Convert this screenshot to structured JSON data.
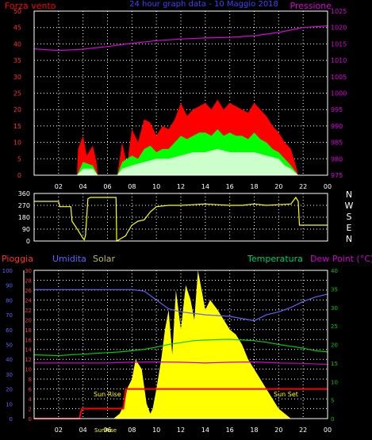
{
  "title": "24 hour graph data - 10 Maggio 2018",
  "x_ticks": [
    "02",
    "04",
    "06",
    "08",
    "10",
    "12",
    "14",
    "16",
    "18",
    "20",
    "22",
    "00"
  ],
  "colors": {
    "wind": "#ff0000",
    "gust": "#00ff00",
    "mean": "#ccffcc",
    "pressure": "#dd00dd",
    "direction": "#ffff00",
    "rain": "#ff0000",
    "humidity": "#6060ff",
    "solar": "#ffff00",
    "temperature": "#00cc00",
    "dewpoint": "#cc00cc",
    "grid": "#ffffff",
    "frame": "#ffffff"
  },
  "chart_data": [
    {
      "type": "line",
      "name": "wind-pressure",
      "left_label": "Forza vento",
      "right_label": "Pressione",
      "left_ticks": [
        0,
        5,
        10,
        15,
        20,
        25,
        30,
        35,
        40,
        45,
        50
      ],
      "right_ticks": [
        975,
        980,
        985,
        990,
        995,
        1000,
        1005,
        1010,
        1015,
        1020,
        1025
      ],
      "ylim_left": [
        0,
        50
      ],
      "ylim_right": [
        975,
        1025
      ],
      "series": [
        {
          "name": "Pressione",
          "axis": "right",
          "x": [
            0,
            2,
            4,
            6,
            8,
            10,
            12,
            14,
            16,
            18,
            20,
            22,
            24
          ],
          "values": [
            1013.5,
            1013,
            1013.4,
            1014.2,
            1015.2,
            1016,
            1016.5,
            1016.8,
            1017,
            1017.5,
            1018.5,
            1020,
            1020.5
          ]
        },
        {
          "name": "Raffica",
          "axis": "left",
          "x": [
            0,
            3.5,
            3.6,
            4.0,
            4.3,
            4.8,
            5.1,
            5.2,
            6.8,
            7.2,
            7.6,
            8.0,
            8.5,
            9.0,
            9.5,
            10.0,
            10.5,
            11.0,
            11.5,
            12.0,
            12.5,
            13.0,
            13.5,
            14.0,
            14.5,
            15.0,
            15.5,
            16.0,
            16.5,
            17.0,
            17.5,
            18.0,
            18.5,
            19.0,
            19.5,
            20.0,
            20.5,
            21.0,
            21.4,
            21.6,
            24
          ],
          "values": [
            0,
            0,
            8,
            12,
            6,
            9,
            4,
            0,
            0,
            10,
            3,
            14,
            10,
            17,
            16,
            12,
            15,
            14,
            17,
            22,
            18,
            20,
            21,
            22,
            20,
            23,
            20,
            22,
            21,
            20,
            19,
            22,
            20,
            18,
            15,
            13,
            10,
            8,
            3,
            0,
            0
          ]
        },
        {
          "name": "Vento",
          "axis": "left",
          "x": [
            0,
            3.5,
            4.0,
            4.8,
            5.2,
            6.8,
            7.2,
            8.0,
            8.5,
            9.0,
            9.5,
            10.0,
            10.5,
            11.0,
            11.5,
            12.0,
            12.5,
            13.0,
            13.5,
            14.0,
            14.5,
            15.0,
            15.5,
            16.0,
            16.5,
            17.0,
            17.5,
            18.0,
            18.5,
            19.0,
            19.5,
            20.0,
            20.5,
            21.0,
            21.6,
            24
          ],
          "values": [
            0,
            0,
            4,
            3,
            0,
            0,
            4,
            6,
            5,
            8,
            9,
            7,
            8,
            8,
            10,
            12,
            11,
            12,
            13,
            13,
            12,
            14,
            12,
            13,
            12,
            12,
            11,
            13,
            11,
            10,
            8,
            7,
            5,
            3,
            0,
            0
          ]
        },
        {
          "name": "Media",
          "axis": "left",
          "x": [
            0,
            3.5,
            4.0,
            4.8,
            5.2,
            6.8,
            7.2,
            8.0,
            9.0,
            10.0,
            11.0,
            12.0,
            13.0,
            14.0,
            15.0,
            16.0,
            17.0,
            18.0,
            19.0,
            20.0,
            20.5,
            21.0,
            21.6,
            24
          ],
          "values": [
            0,
            0,
            2,
            2,
            0,
            0,
            2,
            3,
            4,
            5,
            5,
            6,
            7,
            7,
            8,
            7,
            7,
            7,
            6,
            5,
            3,
            2,
            0,
            0
          ]
        }
      ]
    },
    {
      "type": "line",
      "name": "wind-direction",
      "left_ticks": [
        0,
        90,
        180,
        270,
        360
      ],
      "right_labels": [
        "N",
        "W",
        "S",
        "E",
        "N"
      ],
      "ylim": [
        0,
        360
      ],
      "series": [
        {
          "name": "Direzione",
          "x": [
            0,
            0.2,
            2.0,
            2.1,
            3.0,
            3.1,
            3.6,
            4.0,
            4.1,
            4.2,
            4.4,
            4.6,
            6.7,
            6.75,
            7.5,
            7.6,
            8.0,
            8.5,
            9.0,
            9.5,
            10.0,
            11.0,
            12.0,
            13.0,
            14.0,
            15.0,
            16.0,
            17.0,
            18.0,
            19.0,
            20.0,
            21.0,
            21.4,
            21.6,
            21.7,
            24
          ],
          "values": [
            300,
            300,
            300,
            260,
            260,
            150,
            80,
            20,
            10,
            40,
            320,
            330,
            330,
            0,
            40,
            60,
            120,
            150,
            160,
            220,
            260,
            270,
            270,
            275,
            280,
            275,
            270,
            270,
            280,
            270,
            275,
            280,
            330,
            300,
            120,
            120
          ]
        }
      ]
    },
    {
      "type": "line",
      "name": "rain-humidity-solar-temperature-dewpoint",
      "left_labels": [
        "Pioggia",
        "Umidita",
        "Solar"
      ],
      "right_labels": [
        "Temperatura",
        "Dew Point (°C)"
      ],
      "annotations": [
        "Sun Rise",
        "Sun Set",
        "SunRise"
      ],
      "humidity_ticks": [
        0,
        10,
        20,
        30,
        40,
        50,
        60,
        70,
        80,
        90,
        100
      ],
      "rain_ticks": [
        0,
        2,
        4,
        6,
        8,
        10,
        12,
        14,
        16,
        18,
        20,
        22,
        24,
        26,
        28,
        30
      ],
      "temp_ticks": [
        0,
        5,
        10,
        15,
        20,
        25,
        30,
        35,
        40
      ],
      "ylim_rain": [
        0,
        30
      ],
      "ylim_humidity": [
        0,
        100
      ],
      "ylim_temp": [
        0,
        40
      ],
      "series": [
        {
          "name": "Pioggia",
          "axis": "rain",
          "x": [
            0,
            3.7,
            3.9,
            7.3,
            7.5,
            24
          ],
          "values": [
            0,
            0,
            2,
            2,
            6,
            6
          ]
        },
        {
          "name": "Umidita",
          "axis": "humidity",
          "x": [
            0,
            3.0,
            6.0,
            8.0,
            9.0,
            10.0,
            11.0,
            12.0,
            14.0,
            16.0,
            18.0,
            19.0,
            20.0,
            21.0,
            22.0,
            23.0,
            24
          ],
          "values": [
            87,
            87,
            87,
            87,
            86,
            80,
            74,
            72,
            70,
            69,
            66,
            70,
            72,
            75,
            79,
            82,
            84
          ]
        },
        {
          "name": "Temperatura",
          "axis": "temp",
          "x": [
            0,
            2.0,
            4.0,
            6.0,
            7.0,
            8.0,
            9.0,
            10.0,
            11.0,
            12.0,
            13.0,
            14.0,
            15.0,
            16.0,
            17.0,
            18.0,
            19.0,
            20.0,
            21.0,
            22.0,
            23.0,
            24
          ],
          "values": [
            17.2,
            17,
            17.4,
            17.8,
            18,
            18.3,
            18.7,
            19.3,
            20,
            20.5,
            21,
            21.2,
            21.3,
            21.4,
            21.2,
            21,
            20.6,
            20,
            19.5,
            19,
            18.3,
            18
          ]
        },
        {
          "name": "Dew Point",
          "axis": "temp",
          "x": [
            0,
            3.0,
            6.0,
            8.0,
            10.0,
            12.0,
            14.0,
            16.0,
            18.0,
            20.0,
            22.0,
            24
          ],
          "values": [
            15,
            15,
            15,
            15.2,
            15.3,
            15.2,
            15,
            15.2,
            15.3,
            15,
            14.9,
            14.6
          ]
        },
        {
          "name": "Solar",
          "axis": "rain",
          "x": [
            0,
            6.5,
            7.0,
            7.4,
            7.6,
            8.0,
            8.3,
            8.8,
            9.2,
            9.5,
            9.7,
            10.0,
            10.4,
            10.7,
            11.0,
            11.3,
            11.6,
            12.0,
            12.4,
            12.8,
            13.1,
            13.4,
            13.7,
            14.0,
            14.4,
            15.0,
            15.5,
            16.0,
            16.5,
            17.0,
            17.5,
            18.0,
            18.5,
            19.0,
            19.5,
            20.0,
            20.5,
            21.0,
            24
          ],
          "values": [
            0,
            0,
            1,
            3,
            6,
            8,
            12,
            10,
            3,
            1,
            2,
            6,
            12,
            18,
            22,
            13,
            26,
            18,
            27,
            24,
            20,
            30,
            26,
            22,
            24,
            22,
            20,
            18,
            17,
            15,
            12,
            10,
            8,
            6,
            4,
            2,
            1,
            0,
            0
          ]
        }
      ]
    }
  ]
}
